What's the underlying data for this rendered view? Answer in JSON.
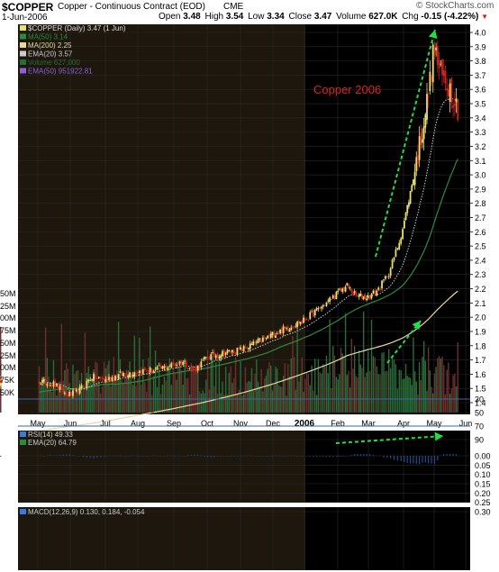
{
  "header": {
    "symbol": "$COPPER",
    "desc": "Copper - Continuous Contract (EOD)",
    "exch": "CME",
    "date": "1-Jun-2006",
    "source": "© StockCharts.com",
    "open_label": "Open",
    "open": "3.48",
    "high_label": "High",
    "high": "3.54",
    "low_label": "Low",
    "low": "3.34",
    "close_label": "Close",
    "close": "3.47",
    "vol_label": "Volume",
    "vol": "627.0K",
    "chg_label": "Chg",
    "chg": "-0.15 (-4.22%)",
    "chg_arrow": "▼"
  },
  "colors": {
    "bg": "#000000",
    "shade": "#1d170d",
    "ma50": "#2e8b3e",
    "ma200": "#e8d8a0",
    "ema20": "#cccccc",
    "volume": "#2a6b3a",
    "ema50_vol": "#9060d8",
    "candle_up": "#e8e070",
    "candle_down": "#d02020",
    "arrow": "#22dd44",
    "annotation": "#e02020",
    "rsi": "#3a7be0",
    "macd": "#3a7be0",
    "signal": "#d0d0d0",
    "grid": "#2a2a2a"
  },
  "chart_data": [
    {
      "type": "candlestick",
      "annotation": "Copper 2006",
      "legend": [
        {
          "label": "$COPPER (Daily) 3.47 (1 Jun)"
        },
        {
          "label": "MA(50) 3.14"
        },
        {
          "label": "MA(200) 2.25"
        },
        {
          "label": "EMA(20) 3.57"
        },
        {
          "label": "Volume 627,000"
        },
        {
          "label": "EMA(50) 951922.81"
        }
      ],
      "y_ticks": [
        "1.4",
        "1.5",
        "1.6",
        "1.7",
        "1.8",
        "1.9",
        "2.0",
        "2.1",
        "2.2",
        "2.3",
        "2.4",
        "2.5",
        "2.6",
        "2.7",
        "2.8",
        "2.9",
        "3.0",
        "3.1",
        "3.2",
        "3.3",
        "3.4",
        "3.5",
        "3.6",
        "3.7",
        "3.8",
        "3.9",
        "4.0"
      ],
      "ylim": [
        1.35,
        4.05
      ],
      "volume_ticks": [
        "50M",
        "25M",
        "00M",
        "75M",
        "50M",
        "25M",
        "00M",
        "75K",
        "50K"
      ],
      "x_labels": [
        "May",
        "Jun",
        "Jul",
        "Aug",
        "Sep",
        "Oct",
        "Nov",
        "Dec",
        "2006",
        "Feb",
        "Mar",
        "Apr",
        "May",
        "Jun"
      ],
      "close_anchors": [
        [
          0,
          1.55
        ],
        [
          0.5,
          1.53
        ],
        [
          0.9,
          1.45
        ],
        [
          1.2,
          1.47
        ],
        [
          1.6,
          1.58
        ],
        [
          2.0,
          1.56
        ],
        [
          2.5,
          1.6
        ],
        [
          3.0,
          1.62
        ],
        [
          3.5,
          1.63
        ],
        [
          3.9,
          1.66
        ],
        [
          4.3,
          1.69
        ],
        [
          4.6,
          1.62
        ],
        [
          5.0,
          1.72
        ],
        [
          5.5,
          1.75
        ],
        [
          6.0,
          1.77
        ],
        [
          6.5,
          1.82
        ],
        [
          7.0,
          1.88
        ],
        [
          7.5,
          1.93
        ],
        [
          8.0,
          1.98
        ],
        [
          8.5,
          2.07
        ],
        [
          9.0,
          2.17
        ],
        [
          9.3,
          2.22
        ],
        [
          9.6,
          2.15
        ],
        [
          10.0,
          2.14
        ],
        [
          10.3,
          2.2
        ],
        [
          10.6,
          2.32
        ],
        [
          10.9,
          2.55
        ],
        [
          11.2,
          2.85
        ],
        [
          11.5,
          3.18
        ],
        [
          11.8,
          3.55
        ],
        [
          12.0,
          3.9
        ],
        [
          12.2,
          3.7
        ],
        [
          12.5,
          3.62
        ],
        [
          12.75,
          3.47
        ]
      ]
    },
    {
      "type": "line",
      "legend": [
        {
          "label": "RSI(14) 49.33"
        },
        {
          "label": "EMA(20) 64.79"
        }
      ],
      "y_ticks": [
        "90",
        "70",
        "50",
        "30"
      ],
      "ylim": [
        20,
        100
      ]
    },
    {
      "type": "line",
      "legend": [
        {
          "label": "MACD(12,26,9) 0.130, 0.184, -0.054"
        }
      ],
      "y_ticks": [
        "0.30",
        "0.25",
        "0.20",
        "0.15",
        "0.10",
        "0.05",
        "0.00"
      ],
      "ylim": [
        -0.02,
        0.31
      ]
    }
  ]
}
